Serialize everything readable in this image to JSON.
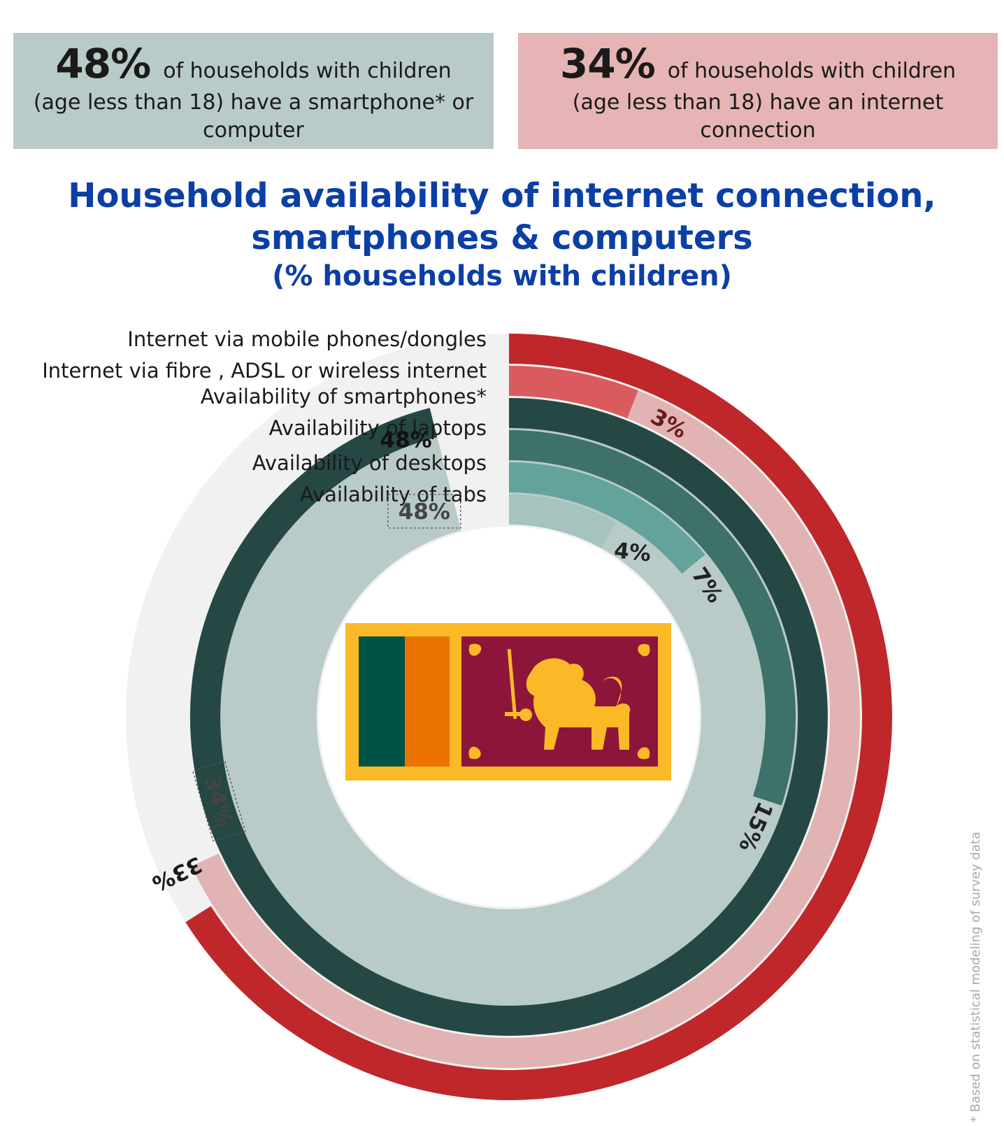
{
  "boxes": {
    "left": {
      "percent": "48%",
      "text1": "of households with children",
      "text2": "(age less than 18) have a smartphone* or computer"
    },
    "right": {
      "percent": "34%",
      "text1": "of households with children",
      "text2": "(age less than 18) have an internet connection"
    }
  },
  "title": {
    "line1": "Household availability of internet connection,",
    "line2": "smartphones & computers",
    "subtitle": "(% households with children)"
  },
  "chart_data": {
    "type": "radial-bar",
    "scale_max_percent": 50,
    "series": [
      {
        "name": "Internet via mobile phones/dongles",
        "value": 33,
        "label": "33%",
        "color": "#c0272a"
      },
      {
        "name": "Internet via fibre , ADSL or wireless internet",
        "value": 3,
        "label": "3%",
        "color": "#d95b5e"
      },
      {
        "name": "Availability of smartphones*",
        "value": 48,
        "label": "48%",
        "color": "#264845"
      },
      {
        "name": "Availability of laptops",
        "value": 15,
        "label": "15%",
        "color": "#3d7169"
      },
      {
        "name": "Availability of desktops",
        "value": 7,
        "label": "7%",
        "color": "#64a39c"
      },
      {
        "name": "Availability of tabs",
        "value": 4,
        "label": "4%",
        "color": "#a6c3c0"
      }
    ],
    "group_totals": [
      {
        "group": "internet connection",
        "value": 34,
        "label": "34%",
        "color": "#e2b3b3"
      },
      {
        "group": "smartphone or computer",
        "value": 48,
        "label": "48%",
        "color": "#b9cbc9"
      }
    ],
    "track_color": "#f1f1f1"
  },
  "footnote": "* Based on statistical modeling of survey data"
}
